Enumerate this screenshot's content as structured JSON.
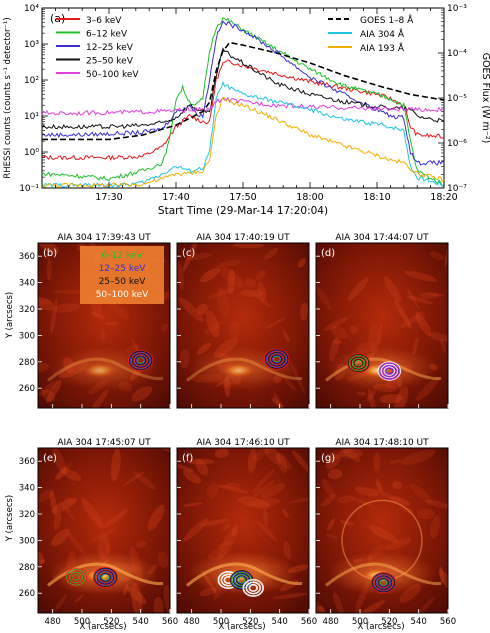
{
  "top_panel": {
    "panel_label": "(a)",
    "x_title": "Start Time (29-Mar-14 17:20:04)",
    "y_left_title": "RHESSI counts (counts s⁻¹ detector⁻¹)",
    "y_right_title": "GOES Flux (W m⁻²)",
    "legend_left": [
      {
        "label": "3–6 keV",
        "color": "#e41a1c"
      },
      {
        "label": "6–12 keV",
        "color": "#1fbf2a"
      },
      {
        "label": "12–25 keV",
        "color": "#3b2fd1"
      },
      {
        "label": "25–50 keV",
        "color": "#111111"
      },
      {
        "label": "50–100 keV",
        "color": "#e040e0"
      }
    ],
    "legend_right": [
      {
        "label": "GOES 1–8 Å",
        "color": "#000000",
        "dashed": true
      },
      {
        "label": "AIA 304 Å",
        "color": "#22c4e6"
      },
      {
        "label": "AIA 193 Å",
        "color": "#f0b000"
      }
    ]
  },
  "chart_data": {
    "type": "line",
    "title": "",
    "xlabel": "Start Time (29-Mar-14 17:20:04)",
    "ylabel": "RHESSI counts (counts s⁻¹ detector⁻¹)",
    "y2label": "GOES Flux (W m⁻²)",
    "x_unit": "minutes after 17:20",
    "xlim": [
      0,
      60
    ],
    "ylim": [
      0.1,
      10000
    ],
    "y_scale": "log",
    "y2lim": [
      1e-07,
      0.001
    ],
    "y2_scale": "log",
    "x_ticks": [
      10,
      20,
      30,
      40,
      50,
      60
    ],
    "x_tick_labels": [
      "17:30",
      "17:40",
      "17:50",
      "18:00",
      "18:10",
      "18:20"
    ],
    "y_ticks": [
      0.1,
      1,
      10,
      100,
      1000,
      10000
    ],
    "y_tick_labels": [
      "10⁻¹",
      "10⁰",
      "10¹",
      "10²",
      "10³",
      "10⁴"
    ],
    "y2_ticks": [
      1e-07,
      1e-06,
      1e-05,
      0.0001,
      0.001
    ],
    "y2_tick_labels": [
      "10⁻⁷",
      "10⁻⁶",
      "10⁻⁵",
      "10⁻⁴",
      "10⁻³"
    ],
    "series": [
      {
        "name": "3–6 keV",
        "color": "#e41a1c",
        "x": [
          0,
          5,
          10,
          15,
          18,
          20,
          22,
          24,
          25,
          26,
          27,
          28,
          30,
          35,
          40,
          45,
          50,
          52,
          54,
          55,
          56,
          60
        ],
        "y": [
          0.7,
          0.7,
          0.7,
          0.75,
          1.4,
          5,
          10,
          7,
          6.5,
          100,
          280,
          330,
          250,
          150,
          90,
          60,
          40,
          30,
          20,
          5,
          3,
          2.6
        ]
      },
      {
        "name": "6–12 keV",
        "color": "#1fbf2a",
        "x": [
          0,
          5,
          10,
          15,
          18,
          19,
          20,
          21,
          22,
          23,
          24,
          25,
          26,
          27,
          28,
          30,
          35,
          40,
          45,
          50,
          52,
          54,
          55,
          56,
          60
        ],
        "y": [
          0.25,
          0.22,
          0.18,
          0.3,
          0.5,
          2,
          30,
          60,
          25,
          20,
          30,
          600,
          3000,
          5000,
          4300,
          2500,
          700,
          200,
          70,
          40,
          30,
          20,
          2,
          0.3,
          0.12
        ]
      },
      {
        "name": "12–25 keV",
        "color": "#3b2fd1",
        "x": [
          0,
          5,
          10,
          15,
          18,
          20,
          22,
          23,
          24,
          25,
          26,
          27,
          28,
          30,
          35,
          40,
          45,
          50,
          52,
          54,
          55,
          56,
          60
        ],
        "y": [
          3,
          3,
          3.2,
          3.5,
          4.5,
          13,
          20,
          12,
          10,
          100,
          1500,
          4000,
          3500,
          2500,
          600,
          120,
          40,
          15,
          10,
          9,
          1,
          0.5,
          0.5
        ]
      },
      {
        "name": "25–50 keV",
        "color": "#111111",
        "x": [
          0,
          5,
          10,
          15,
          18,
          20,
          22,
          24,
          25,
          26,
          27,
          28,
          30,
          35,
          40,
          45,
          50,
          52,
          54,
          55,
          56,
          60
        ],
        "y": [
          5,
          5,
          5,
          5.5,
          6.5,
          9,
          20,
          13,
          12,
          130,
          700,
          500,
          300,
          80,
          40,
          25,
          18,
          17,
          16,
          15,
          10,
          7
        ]
      },
      {
        "name": "50–100 keV",
        "color": "#e040e0",
        "x": [
          0,
          5,
          10,
          15,
          20,
          22,
          24,
          25,
          26,
          27,
          28,
          30,
          35,
          40,
          45,
          50,
          55,
          60
        ],
        "y": [
          12,
          12,
          12.5,
          13,
          14,
          15,
          15,
          15,
          25,
          30,
          28,
          25,
          20,
          18,
          17,
          16,
          15,
          15
        ]
      },
      {
        "name": "GOES 1–8 Å",
        "color": "#000000",
        "dashed": true,
        "axis": "right",
        "x": [
          0,
          5,
          10,
          15,
          20,
          24,
          25,
          26,
          27,
          28,
          30,
          35,
          40,
          45,
          50,
          55,
          60
        ],
        "y": [
          1.2e-06,
          1.2e-06,
          1.2e-06,
          1.5e-06,
          2.5e-06,
          5e-06,
          8e-06,
          4e-05,
          0.00011,
          0.00017,
          0.00015,
          0.0001,
          6e-05,
          3.2e-05,
          1.9e-05,
          1.2e-05,
          9e-06
        ]
      },
      {
        "name": "AIA 304 Å",
        "color": "#22c4e6",
        "x": [
          0,
          12,
          15,
          18,
          20,
          22,
          24,
          25,
          26,
          27,
          28,
          30,
          35,
          40,
          45,
          50,
          52,
          54,
          55,
          56,
          60
        ],
        "y": [
          0.12,
          0.12,
          0.14,
          0.25,
          0.4,
          0.3,
          0.35,
          1,
          30,
          80,
          60,
          40,
          25,
          15,
          8,
          6,
          5,
          4,
          0.4,
          0.2,
          0.12
        ]
      },
      {
        "name": "AIA 193 Å",
        "color": "#f0b000",
        "x": [
          0,
          12,
          15,
          18,
          20,
          22,
          24,
          25,
          26,
          27,
          28,
          30,
          35,
          40,
          45,
          50,
          52,
          54,
          55,
          56,
          60
        ],
        "y": [
          0.12,
          0.12,
          0.13,
          0.18,
          0.25,
          0.25,
          0.3,
          0.6,
          10,
          30,
          25,
          20,
          8,
          3,
          1.5,
          0.8,
          0.6,
          0.5,
          0.35,
          0.25,
          0.17
        ]
      }
    ]
  },
  "image_panels": {
    "x_title": "X (arcsecs)",
    "y_title": "Y (arcsecs)",
    "x_ticks": [
      480,
      500,
      520,
      540,
      560
    ],
    "y_ticks": [
      260,
      280,
      300,
      320,
      340,
      360
    ],
    "xlim": [
      470,
      560
    ],
    "ylim": [
      245,
      370
    ],
    "contour_legend": [
      {
        "label": "6–12 keV",
        "color": "#1fbf2a"
      },
      {
        "label": "12–25 keV",
        "color": "#3b2fd1"
      },
      {
        "label": "25–50 keV",
        "color": "#111111"
      },
      {
        "label": "50–100 keV",
        "color": "#ffffff"
      }
    ],
    "panels": [
      {
        "label": "(b)",
        "title": "AIA 304 17:39:43 UT",
        "sources": [
          {
            "x": 540,
            "y": 281,
            "colors": [
              "#1fbf2a",
              "#3b2fd1",
              "#111111",
              "#e41a1c"
            ]
          }
        ]
      },
      {
        "label": "(c)",
        "title": "AIA 304 17:40:19 UT",
        "sources": [
          {
            "x": 538,
            "y": 282,
            "colors": [
              "#1fbf2a",
              "#3b2fd1",
              "#111111",
              "#e41a1c"
            ]
          }
        ]
      },
      {
        "label": "(d)",
        "title": "AIA 304 17:44:07 UT",
        "sources": [
          {
            "x": 499,
            "y": 279,
            "colors": [
              "#1fbf2a",
              "#111111",
              "#e41a1c"
            ]
          },
          {
            "x": 520,
            "y": 273,
            "colors": [
              "#3b2fd1",
              "#e040e0",
              "#ffffff"
            ]
          }
        ]
      },
      {
        "label": "(e)",
        "title": "AIA 304 17:45:07 UT",
        "sources": [
          {
            "x": 496,
            "y": 272,
            "colors": [
              "#1fbf2a",
              "#e41a1c"
            ]
          },
          {
            "x": 516,
            "y": 272,
            "colors": [
              "#1fbf2a",
              "#3b2fd1",
              "#111111",
              "#e41a1c"
            ]
          }
        ]
      },
      {
        "label": "(f)",
        "title": "AIA 304 17:46:10 UT",
        "sources": [
          {
            "x": 505,
            "y": 270,
            "colors": [
              "#ffffff",
              "#ffffff"
            ]
          },
          {
            "x": 514,
            "y": 270,
            "colors": [
              "#1fbf2a",
              "#3b2fd1",
              "#111111"
            ]
          },
          {
            "x": 522,
            "y": 264,
            "colors": [
              "#ffffff",
              "#ffffff"
            ]
          }
        ]
      },
      {
        "label": "(g)",
        "title": "AIA 304 17:48:10 UT",
        "sources": [
          {
            "x": 516,
            "y": 268,
            "colors": [
              "#1fbf2a",
              "#3b2fd1",
              "#111111",
              "#e41a1c"
            ]
          }
        ]
      }
    ]
  }
}
